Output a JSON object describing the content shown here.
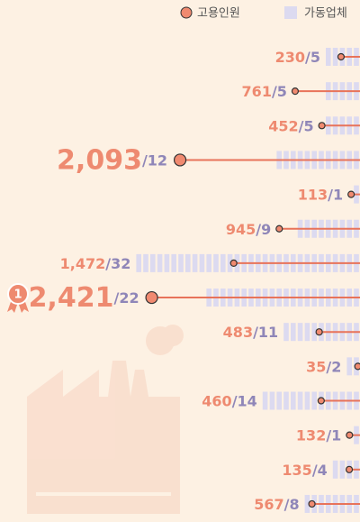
{
  "chart_data": {
    "type": "lollipop",
    "separator": "/",
    "annotations": [
      {
        "text": "1"
      }
    ],
    "series": [
      {
        "name": "고용인원",
        "color": "#f08a70",
        "values": [
          230,
          761,
          452,
          2093,
          113,
          945,
          1472,
          2421,
          483,
          35,
          460,
          132,
          135,
          567
        ],
        "value_labels": [
          "230",
          "761",
          "452",
          "2,093",
          "113",
          "945",
          "1,472",
          "2,421",
          "483",
          "35",
          "460",
          "132",
          "135",
          "567"
        ]
      },
      {
        "name": "가동업체",
        "color": "#dcdaf0",
        "values": [
          5,
          5,
          5,
          12,
          1,
          9,
          32,
          22,
          11,
          2,
          14,
          1,
          4,
          8
        ]
      }
    ]
  }
}
